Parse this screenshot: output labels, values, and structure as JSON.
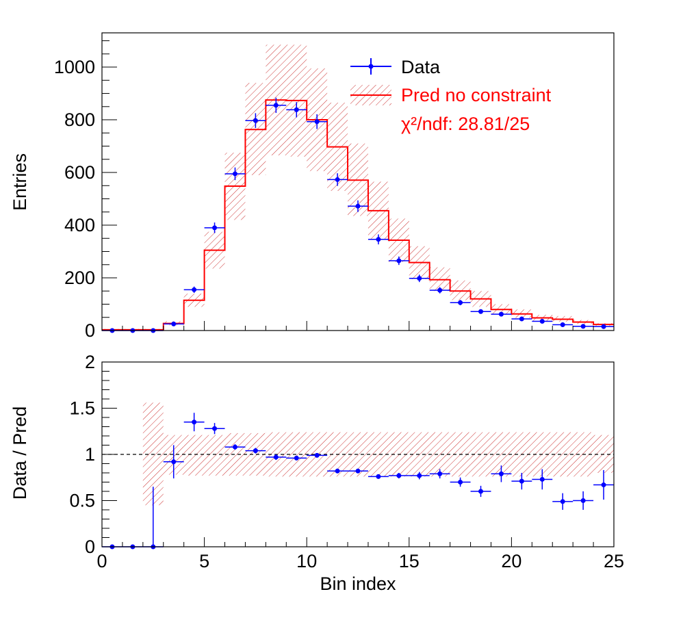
{
  "chart_data": [
    {
      "type": "histogram",
      "panel": "top",
      "ylabel": "Entries",
      "xlim": [
        0,
        25
      ],
      "ylim": [
        0,
        1130
      ],
      "yticks": [
        0,
        200,
        400,
        600,
        800,
        1000
      ],
      "legend_position": "top-right",
      "legend": {
        "data_label": "Data",
        "pred_label": "Pred no constraint",
        "chi2_label": "χ²/ndf: 28.81/25"
      },
      "colors": {
        "data": "#0000ff",
        "pred": "#ff0000",
        "band": "#cc3333",
        "axis": "#000000"
      },
      "bin_edges": [
        0,
        1,
        2,
        3,
        4,
        5,
        6,
        7,
        8,
        9,
        10,
        11,
        12,
        13,
        14,
        15,
        16,
        17,
        18,
        19,
        20,
        21,
        22,
        23,
        24,
        25
      ],
      "series": [
        {
          "name": "Data",
          "kind": "points",
          "x": [
            0.5,
            1.5,
            2.5,
            3.5,
            4.5,
            5.5,
            6.5,
            7.5,
            8.5,
            9.5,
            10.5,
            11.5,
            12.5,
            13.5,
            14.5,
            15.5,
            16.5,
            17.5,
            18.5,
            19.5,
            20.5,
            21.5,
            22.5,
            23.5,
            24.5
          ],
          "values": [
            0,
            0,
            0,
            25,
            155,
            390,
            595,
            797,
            855,
            838,
            793,
            573,
            472,
            346,
            265,
            198,
            153,
            106,
            72,
            62,
            44,
            35,
            22,
            16,
            15
          ],
          "errors": [
            0,
            0,
            1,
            5,
            12,
            20,
            24,
            28,
            29,
            29,
            28,
            24,
            22,
            19,
            16,
            14,
            12,
            10,
            8.5,
            8,
            6.6,
            6,
            4.7,
            4,
            3.9
          ]
        },
        {
          "name": "Pred no constraint",
          "kind": "step",
          "values": [
            3,
            3,
            3,
            27,
            115,
            305,
            548,
            763,
            875,
            873,
            800,
            697,
            571,
            455,
            343,
            258,
            193,
            150,
            120,
            80,
            63,
            48,
            43,
            32,
            23
          ],
          "band_low": [
            0,
            0,
            0,
            20,
            90,
            235,
            420,
            590,
            665,
            660,
            605,
            530,
            435,
            345,
            260,
            195,
            150,
            115,
            90,
            60,
            48,
            37,
            33,
            25,
            18
          ],
          "band_high": [
            6,
            6,
            6,
            35,
            140,
            375,
            675,
            940,
            1085,
            1085,
            995,
            865,
            710,
            565,
            425,
            320,
            240,
            190,
            150,
            100,
            80,
            60,
            55,
            40,
            28
          ]
        }
      ]
    },
    {
      "type": "ratio",
      "panel": "bottom",
      "xlabel": "Bin index",
      "ylabel": "Data / Pred",
      "xlim": [
        0,
        25
      ],
      "ylim": [
        0,
        2
      ],
      "xticks": [
        0,
        5,
        10,
        15,
        20,
        25
      ],
      "xtick_labels": [
        "0",
        "5",
        "10",
        "15",
        "20",
        "25"
      ],
      "yticks": [
        0,
        0.5,
        1,
        1.5,
        2
      ],
      "ytick_labels": [
        "0",
        "0.5",
        "1",
        "1.5",
        "2"
      ],
      "reference_line": 1,
      "ratio": {
        "x": [
          0.5,
          1.5,
          2.5,
          3.5,
          4.5,
          5.5,
          6.5,
          7.5,
          8.5,
          9.5,
          10.5,
          11.5,
          12.5,
          13.5,
          14.5,
          15.5,
          16.5,
          17.5,
          18.5,
          19.5,
          20.5,
          21.5,
          22.5,
          23.5,
          24.5
        ],
        "values": [
          0,
          0,
          0,
          0.92,
          1.35,
          1.28,
          1.08,
          1.04,
          0.97,
          0.96,
          0.99,
          0.82,
          0.82,
          0.76,
          0.77,
          0.77,
          0.79,
          0.7,
          0.6,
          0.79,
          0.71,
          0.73,
          0.49,
          0.5,
          0.67
        ],
        "errors": [
          0,
          0,
          0.65,
          0.18,
          0.1,
          0.06,
          0.03,
          0.03,
          0.03,
          0.02,
          0.02,
          0.02,
          0.02,
          0.02,
          0.03,
          0.04,
          0.05,
          0.05,
          0.06,
          0.09,
          0.09,
          0.11,
          0.09,
          0.1,
          0.16
        ]
      },
      "band": {
        "low": [
          null,
          null,
          0.45,
          0.78,
          0.77,
          0.77,
          0.77,
          0.77,
          0.76,
          0.76,
          0.76,
          0.76,
          0.76,
          0.76,
          0.76,
          0.76,
          0.76,
          0.76,
          0.76,
          0.76,
          0.76,
          0.76,
          0.76,
          0.76,
          0.8
        ],
        "high": [
          null,
          null,
          1.56,
          1.21,
          1.21,
          1.21,
          1.23,
          1.23,
          1.24,
          1.24,
          1.24,
          1.24,
          1.24,
          1.24,
          1.24,
          1.24,
          1.24,
          1.24,
          1.24,
          1.24,
          1.24,
          1.24,
          1.24,
          1.24,
          1.21
        ]
      }
    }
  ]
}
